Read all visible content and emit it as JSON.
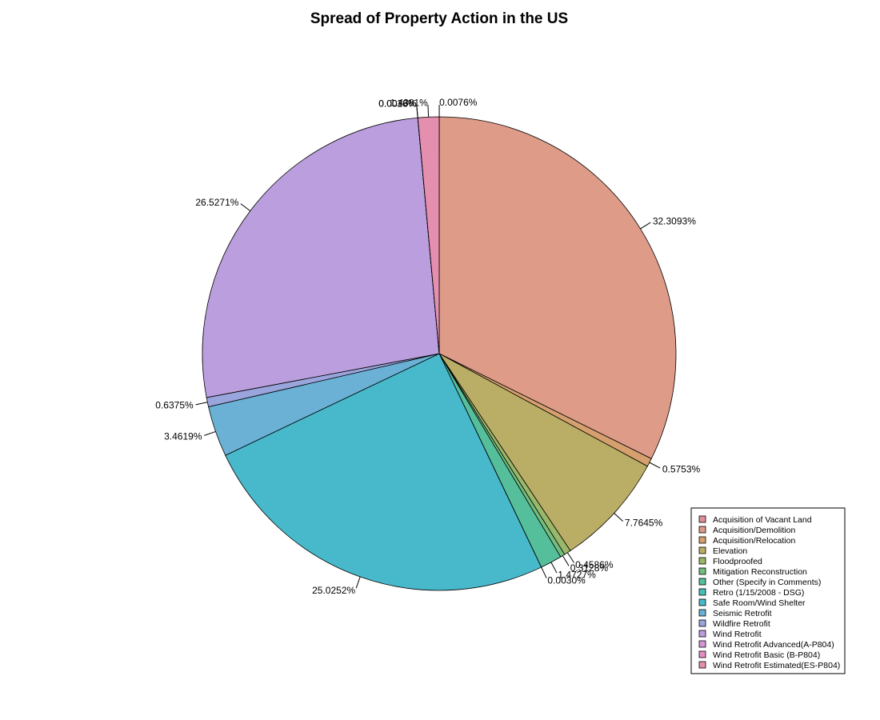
{
  "chart_data": {
    "type": "pie",
    "title": "Spread of Property Action in the US",
    "legend_position": "bottom-right",
    "slices": [
      {
        "name": "Acquisition of Vacant Land",
        "value": 0.0076,
        "label": "0.0076%",
        "color": "#E08F99"
      },
      {
        "name": "Acquisition/Demolition",
        "value": 32.3093,
        "label": "32.3093%",
        "color": "#DD9B88"
      },
      {
        "name": "Acquisition/Relocation",
        "value": 0.5753,
        "label": "0.5753%",
        "color": "#D6A06E"
      },
      {
        "name": "Elevation",
        "value": 7.7645,
        "label": "7.7645%",
        "color": "#BAAE66"
      },
      {
        "name": "Floodproofed",
        "value": 0.4586,
        "label": "0.4586%",
        "color": "#99B86A"
      },
      {
        "name": "Mitigation Reconstruction",
        "value": 0.3128,
        "label": "0.3128%",
        "color": "#73BE7E"
      },
      {
        "name": "Other (Specify in Comments)",
        "value": 1.4727,
        "label": "1.4727%",
        "color": "#55BF9B"
      },
      {
        "name": "Retro (1/15/2008 - DSG)",
        "value": 0.003,
        "label": "0.0030%",
        "color": "#46BDB6"
      },
      {
        "name": "Safe Room/Wind Shelter",
        "value": 25.0252,
        "label": "25.0252%",
        "color": "#48B9CB"
      },
      {
        "name": "Seismic Retrofit",
        "value": 3.4619,
        "label": "3.4619%",
        "color": "#6BB1D6"
      },
      {
        "name": "Wildfire Retrofit",
        "value": 0.6375,
        "label": "0.6375%",
        "color": "#9AA5DD"
      },
      {
        "name": "Wind Retrofit",
        "value": 26.5271,
        "label": "26.5271%",
        "color": "#BB9EDD"
      },
      {
        "name": "Wind Retrofit Advanced(A-P804)",
        "value": 0.0018,
        "label": "0.0018%",
        "color": "#D796D6"
      },
      {
        "name": "Wind Retrofit Basic (B-P804)",
        "value": 0.0036,
        "label": "0.0036%",
        "color": "#E58FC4"
      },
      {
        "name": "Wind Retrofit Estimated(ES-P804)",
        "value": 1.4381,
        "label": "1.4381%",
        "color": "#E48FAE"
      }
    ]
  }
}
